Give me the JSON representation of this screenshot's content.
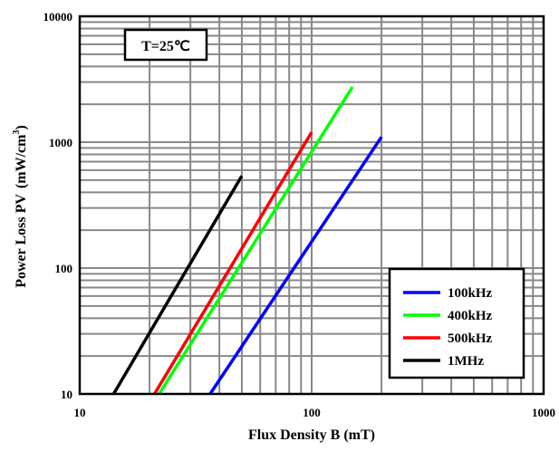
{
  "chart_data": {
    "type": "line",
    "title": "",
    "xlabel": "Flux Density B (mT)",
    "ylabel": "Power Loss PV",
    "ylabel_unit_base": "(mW/cm",
    "ylabel_unit_exp": "3",
    "ylabel_unit_close": ")",
    "xscale": "log",
    "yscale": "log",
    "xlim": [
      10,
      1000
    ],
    "ylim": [
      10,
      10000
    ],
    "xticks": [
      10,
      100,
      1000
    ],
    "xtick_labels": [
      "10",
      "100",
      "1000"
    ],
    "yticks": [
      10,
      100,
      1000,
      10000
    ],
    "ytick_labels": [
      "10",
      "100",
      "1000",
      "10000"
    ],
    "grid": true,
    "legend_position": "bottom-right",
    "annotation": "T=25℃",
    "series": [
      {
        "name": "100kHz",
        "color": "#0000ff",
        "x": [
          36.5,
          200
        ],
        "y": [
          10,
          1100
        ]
      },
      {
        "name": "400kHz",
        "color": "#00ff00",
        "x": [
          22,
          150
        ],
        "y": [
          10,
          2750
        ]
      },
      {
        "name": "500kHz",
        "color": "#ff0000",
        "x": [
          21,
          100
        ],
        "y": [
          10,
          1200
        ]
      },
      {
        "name": "1MHz",
        "color": "#000000",
        "x": [
          14,
          50
        ],
        "y": [
          10,
          540
        ]
      }
    ]
  }
}
